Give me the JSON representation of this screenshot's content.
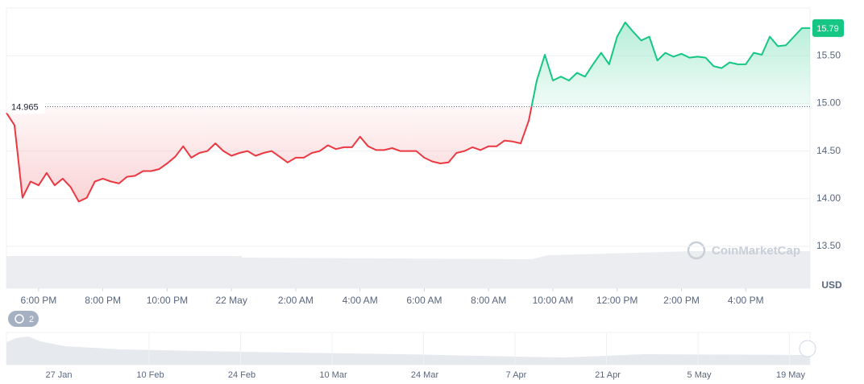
{
  "chart_data": {
    "type": "line",
    "currency": "USD",
    "watermark": "CoinMarketCap",
    "badge": "2",
    "baseline": 14.965,
    "baseline_label": "14.965",
    "last_label": "15.79",
    "color_up": "#16c784",
    "color_down": "#ea3943",
    "xlim": [
      0,
      100
    ],
    "xticks": [
      {
        "value": 4,
        "label": "6:00 PM"
      },
      {
        "value": 12,
        "label": "8:00 PM"
      },
      {
        "value": 20,
        "label": "10:00 PM"
      },
      {
        "value": 28,
        "label": "22 May"
      },
      {
        "value": 36,
        "label": "2:00 AM"
      },
      {
        "value": 44,
        "label": "4:00 AM"
      },
      {
        "value": 52,
        "label": "6:00 AM"
      },
      {
        "value": 60,
        "label": "8:00 AM"
      },
      {
        "value": 68,
        "label": "10:00 AM"
      },
      {
        "value": 76,
        "label": "12:00 PM"
      },
      {
        "value": 84,
        "label": "2:00 PM"
      },
      {
        "value": 92,
        "label": "4:00 PM"
      }
    ],
    "ylim": [
      13.5,
      16.0
    ],
    "yticks": [
      {
        "value": 13.5,
        "label": "13.50"
      },
      {
        "value": 14,
        "label": "14.00"
      },
      {
        "value": 14.5,
        "label": "14.50"
      },
      {
        "value": 15,
        "label": "15.00"
      },
      {
        "value": 15.5,
        "label": "15.50"
      }
    ],
    "grid": true,
    "values": [
      14.9,
      14.77,
      14.01,
      14.18,
      14.14,
      14.27,
      14.14,
      14.21,
      14.12,
      13.97,
      14.01,
      14.18,
      14.21,
      14.18,
      14.16,
      14.23,
      14.24,
      14.29,
      14.29,
      14.31,
      14.37,
      14.44,
      14.55,
      14.43,
      14.48,
      14.5,
      14.58,
      14.5,
      14.45,
      14.48,
      14.5,
      14.45,
      14.48,
      14.5,
      14.44,
      14.38,
      14.43,
      14.43,
      14.48,
      14.5,
      14.56,
      14.52,
      14.54,
      14.54,
      14.65,
      14.55,
      14.51,
      14.51,
      14.53,
      14.5,
      14.5,
      14.5,
      14.43,
      14.39,
      14.37,
      14.38,
      14.48,
      14.5,
      14.54,
      14.51,
      14.55,
      14.55,
      14.61,
      14.6,
      14.58,
      14.82,
      15.24,
      15.51,
      15.24,
      15.28,
      15.24,
      15.32,
      15.28,
      15.41,
      15.53,
      15.41,
      15.7,
      15.85,
      15.75,
      15.66,
      15.7,
      15.45,
      15.53,
      15.49,
      15.52,
      15.48,
      15.49,
      15.48,
      15.39,
      15.37,
      15.43,
      15.41,
      15.41,
      15.53,
      15.51,
      15.7,
      15.6,
      15.61,
      15.7,
      15.79,
      15.79
    ],
    "navigator_labels": [
      "27 Jan",
      "10 Feb",
      "24 Feb",
      "10 Mar",
      "24 Mar",
      "7 Apr",
      "21 Apr",
      "5 May",
      "19 May"
    ]
  }
}
